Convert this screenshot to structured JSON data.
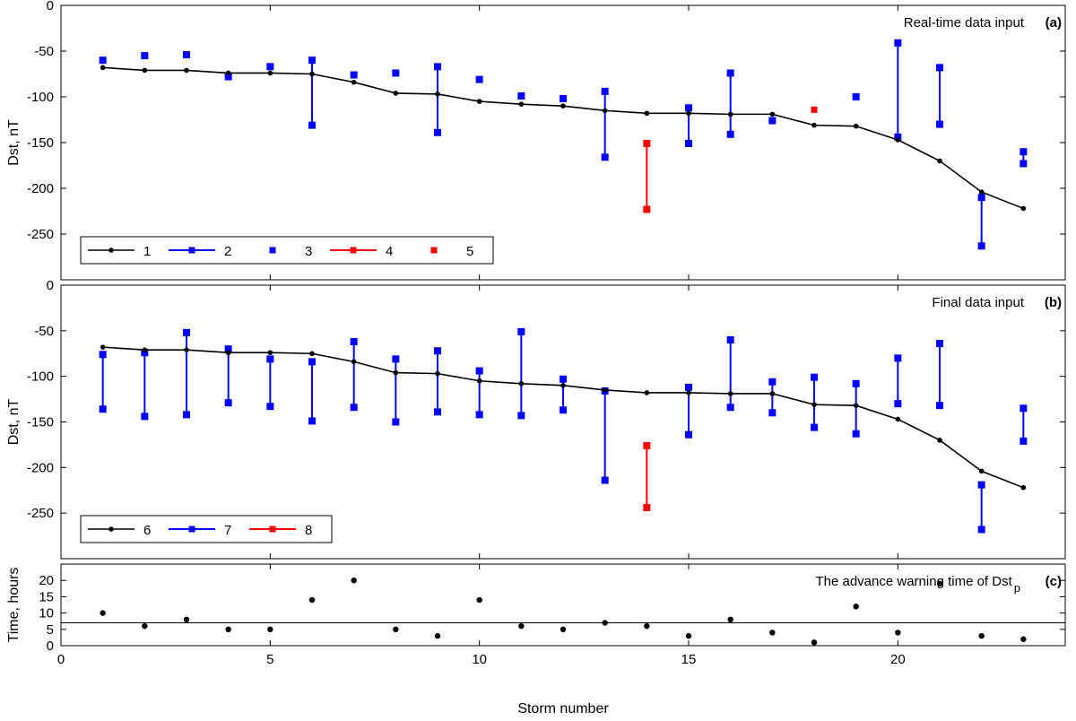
{
  "colors": {
    "black": "#000000",
    "blue": "#0000ff",
    "red": "#ff0000",
    "frame": "#000000"
  },
  "chart_data": [
    {
      "type": "line",
      "panel": "a",
      "title": "Real-time data input",
      "tag": "(a)",
      "xlabel": "",
      "ylabel": "Dst, nT",
      "xlim": [
        0,
        24
      ],
      "ylim": [
        -300,
        0
      ],
      "yticks": [
        0,
        -50,
        -100,
        -150,
        -200,
        -250
      ],
      "xticks": [
        0,
        5,
        10,
        15,
        20
      ],
      "show_x_ticklabels": false,
      "grid": false,
      "legend_position": "bottom-left",
      "legend": [
        "1",
        "2",
        "3",
        "4",
        "5"
      ],
      "observed": {
        "x": [
          1,
          2,
          3,
          4,
          5,
          6,
          7,
          8,
          9,
          10,
          11,
          12,
          13,
          14,
          15,
          16,
          17,
          18,
          19,
          20,
          21,
          22,
          23
        ],
        "y": [
          -68,
          -71,
          -71,
          -74,
          -74,
          -75,
          -84,
          -96,
          -97,
          -105,
          -108,
          -110,
          -115,
          -118,
          -118,
          -119,
          -119,
          -131,
          -132,
          -147,
          -170,
          -204,
          -222
        ]
      },
      "blue_ranges": [
        {
          "x": 6,
          "y": [
            -60,
            -131
          ]
        },
        {
          "x": 9,
          "y": [
            -67,
            -139
          ]
        },
        {
          "x": 13,
          "y": [
            -94,
            -166
          ]
        },
        {
          "x": 15,
          "y": [
            -112,
            -151
          ]
        },
        {
          "x": 16,
          "y": [
            -74,
            -141
          ]
        },
        {
          "x": 20,
          "y": [
            -41,
            -144
          ]
        },
        {
          "x": 21,
          "y": [
            -68,
            -130
          ]
        },
        {
          "x": 22,
          "y": [
            -210,
            -263
          ]
        },
        {
          "x": 23,
          "y": [
            -160,
            -173
          ]
        }
      ],
      "blue_points": [
        {
          "x": 1,
          "y": -60
        },
        {
          "x": 2,
          "y": -55
        },
        {
          "x": 3,
          "y": -54
        },
        {
          "x": 4,
          "y": -78
        },
        {
          "x": 5,
          "y": -67
        },
        {
          "x": 7,
          "y": -76
        },
        {
          "x": 8,
          "y": -74
        },
        {
          "x": 10,
          "y": -81
        },
        {
          "x": 11,
          "y": -99
        },
        {
          "x": 12,
          "y": -102
        },
        {
          "x": 17,
          "y": -126
        },
        {
          "x": 19,
          "y": -100
        }
      ],
      "red_ranges": [
        {
          "x": 14,
          "y": [
            -151,
            -223
          ]
        }
      ],
      "red_points": [
        {
          "x": 18,
          "y": -114
        }
      ]
    },
    {
      "type": "line",
      "panel": "b",
      "title": "Final data input",
      "tag": "(b)",
      "xlabel": "",
      "ylabel": "Dst, nT",
      "xlim": [
        0,
        24
      ],
      "ylim": [
        -300,
        0
      ],
      "yticks": [
        0,
        -50,
        -100,
        -150,
        -200,
        -250
      ],
      "xticks": [
        0,
        5,
        10,
        15,
        20
      ],
      "show_x_ticklabels": false,
      "grid": false,
      "legend_position": "bottom-left",
      "legend": [
        "6",
        "7",
        "8"
      ],
      "observed": {
        "x": [
          1,
          2,
          3,
          4,
          5,
          6,
          7,
          8,
          9,
          10,
          11,
          12,
          13,
          14,
          15,
          16,
          17,
          18,
          19,
          20,
          21,
          22,
          23
        ],
        "y": [
          -68,
          -71,
          -71,
          -74,
          -74,
          -75,
          -84,
          -96,
          -97,
          -105,
          -108,
          -110,
          -115,
          -118,
          -118,
          -119,
          -119,
          -131,
          -132,
          -147,
          -170,
          -204,
          -222
        ]
      },
      "blue_ranges": [
        {
          "x": 1,
          "y": [
            -76,
            -136
          ]
        },
        {
          "x": 2,
          "y": [
            -74,
            -144
          ]
        },
        {
          "x": 3,
          "y": [
            -52,
            -142
          ]
        },
        {
          "x": 4,
          "y": [
            -70,
            -129
          ]
        },
        {
          "x": 5,
          "y": [
            -81,
            -133
          ]
        },
        {
          "x": 6,
          "y": [
            -84,
            -149
          ]
        },
        {
          "x": 7,
          "y": [
            -62,
            -134
          ]
        },
        {
          "x": 8,
          "y": [
            -81,
            -150
          ]
        },
        {
          "x": 9,
          "y": [
            -72,
            -139
          ]
        },
        {
          "x": 10,
          "y": [
            -94,
            -142
          ]
        },
        {
          "x": 11,
          "y": [
            -51,
            -143
          ]
        },
        {
          "x": 12,
          "y": [
            -103,
            -137
          ]
        },
        {
          "x": 13,
          "y": [
            -116,
            -214
          ]
        },
        {
          "x": 15,
          "y": [
            -112,
            -164
          ]
        },
        {
          "x": 16,
          "y": [
            -60,
            -134
          ]
        },
        {
          "x": 17,
          "y": [
            -106,
            -140
          ]
        },
        {
          "x": 18,
          "y": [
            -101,
            -156
          ]
        },
        {
          "x": 19,
          "y": [
            -108,
            -163
          ]
        },
        {
          "x": 20,
          "y": [
            -80,
            -130
          ]
        },
        {
          "x": 21,
          "y": [
            -64,
            -132
          ]
        },
        {
          "x": 22,
          "y": [
            -219,
            -268
          ]
        },
        {
          "x": 23,
          "y": [
            -135,
            -171
          ]
        }
      ],
      "blue_points": [],
      "red_ranges": [
        {
          "x": 14,
          "y": [
            -176,
            -244
          ]
        }
      ],
      "red_points": []
    },
    {
      "type": "scatter",
      "panel": "c",
      "title": "The advance warning time of Dst",
      "title_subscript": "p",
      "tag": "(c)",
      "xlabel": "Storm number",
      "ylabel": "Time, hours",
      "xlim": [
        0,
        24
      ],
      "ylim": [
        0,
        25
      ],
      "yticks": [
        0,
        5,
        10,
        15,
        20
      ],
      "xticks": [
        0,
        5,
        10,
        15,
        20
      ],
      "show_x_ticklabels": true,
      "grid": false,
      "reference_line_y": 7,
      "points": {
        "x": [
          1,
          2,
          3,
          4,
          5,
          6,
          7,
          8,
          9,
          10,
          11,
          12,
          13,
          14,
          15,
          16,
          17,
          18,
          19,
          20,
          21,
          22,
          23
        ],
        "y": [
          10,
          6,
          8,
          5,
          5,
          14,
          20,
          5,
          3,
          14,
          6,
          5,
          7,
          6,
          3,
          8,
          4,
          1,
          12,
          4,
          19,
          3,
          2
        ]
      }
    }
  ]
}
